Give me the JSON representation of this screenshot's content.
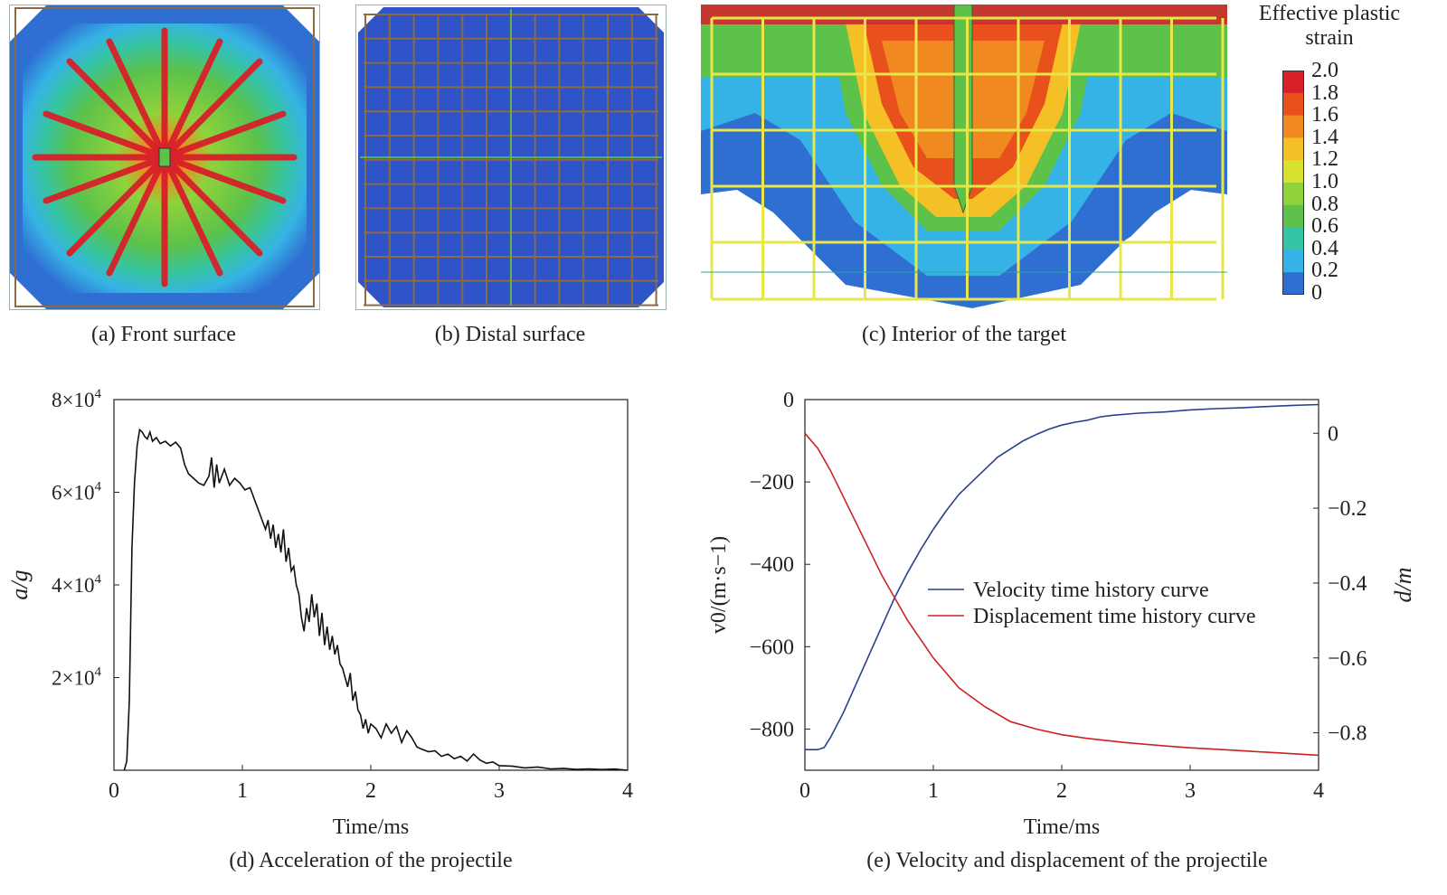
{
  "colors": {
    "scale": [
      "#2e46b8",
      "#2f6fd2",
      "#36b3e6",
      "#35c4a4",
      "#5cc24a",
      "#8fd23c",
      "#d8e030",
      "#f5c025",
      "#f08a20",
      "#e8501c",
      "#d7202a"
    ],
    "grid_brown": "#8b6a44",
    "grid_yellow": "#e8e64a",
    "velocity": "#2a3f8f",
    "displacement": "#cc2222"
  },
  "panels": {
    "a": {
      "caption": "(a) Front surface"
    },
    "b": {
      "caption": "(b) Distal surface"
    },
    "c": {
      "caption": "(c) Interior of the target"
    }
  },
  "colorbar": {
    "title_line1": "Effective plastic",
    "title_line2": "strain",
    "labels": [
      "2.0",
      "1.8",
      "1.6",
      "1.4",
      "1.2",
      "1.0",
      "0.8",
      "0.6",
      "0.4",
      "0.2",
      "0"
    ]
  },
  "chart_data": [
    {
      "type": "line",
      "caption": "(d) Acceleration of the projectile",
      "xlabel": "Time/ms",
      "ylabel": "a/g",
      "xlim": [
        0,
        4
      ],
      "ylim": [
        0,
        80000
      ],
      "xticks": [
        0,
        1,
        2,
        3,
        4
      ],
      "yticks": [
        {
          "v": 20000,
          "label": "2×10",
          "exp": "4"
        },
        {
          "v": 40000,
          "label": "4×10",
          "exp": "4"
        },
        {
          "v": 60000,
          "label": "6×10",
          "exp": "4"
        },
        {
          "v": 80000,
          "label": "8×10",
          "exp": "4"
        }
      ],
      "series": [
        {
          "x": [
            0.08,
            0.1,
            0.12,
            0.14,
            0.16,
            0.18,
            0.2,
            0.22,
            0.24,
            0.26,
            0.28,
            0.3,
            0.33,
            0.36,
            0.4,
            0.44,
            0.48,
            0.52,
            0.55,
            0.58,
            0.62,
            0.66,
            0.7,
            0.74,
            0.76,
            0.78,
            0.8,
            0.82,
            0.86,
            0.9,
            0.94,
            0.98,
            1.02,
            1.06,
            1.1,
            1.14,
            1.18,
            1.2,
            1.22,
            1.24,
            1.26,
            1.28,
            1.3,
            1.32,
            1.34,
            1.36,
            1.38,
            1.4,
            1.42,
            1.44,
            1.46,
            1.48,
            1.5,
            1.52,
            1.54,
            1.56,
            1.58,
            1.6,
            1.62,
            1.64,
            1.66,
            1.68,
            1.7,
            1.72,
            1.74,
            1.76,
            1.78,
            1.8,
            1.82,
            1.84,
            1.86,
            1.88,
            1.9,
            1.92,
            1.94,
            1.96,
            1.98,
            2.0,
            2.04,
            2.08,
            2.12,
            2.16,
            2.2,
            2.24,
            2.28,
            2.32,
            2.36,
            2.4,
            2.45,
            2.5,
            2.55,
            2.6,
            2.65,
            2.7,
            2.75,
            2.8,
            2.85,
            2.9,
            2.95,
            3.0,
            3.1,
            3.2,
            3.3,
            3.4,
            3.5,
            3.6,
            3.7,
            3.8,
            3.9,
            4.0
          ],
          "y": [
            0,
            2000,
            15000,
            48000,
            62000,
            70000,
            73500,
            73000,
            72000,
            71500,
            73000,
            71000,
            71800,
            70500,
            71000,
            70000,
            70800,
            69500,
            66000,
            64000,
            63000,
            62000,
            61500,
            63500,
            67500,
            61000,
            66000,
            62000,
            65000,
            61500,
            63000,
            62000,
            60500,
            61000,
            58000,
            55000,
            52000,
            54000,
            50000,
            53000,
            48000,
            51000,
            47000,
            52000,
            45000,
            48000,
            43000,
            44000,
            40000,
            38000,
            33000,
            30000,
            35000,
            32000,
            38000,
            33000,
            36000,
            29000,
            34000,
            27000,
            31000,
            26000,
            29000,
            25000,
            27000,
            23000,
            22000,
            20000,
            18000,
            21000,
            15000,
            17000,
            13000,
            12000,
            9000,
            11000,
            8000,
            10000,
            9000,
            7000,
            10000,
            8000,
            9500,
            6000,
            8500,
            7000,
            5000,
            4500,
            4000,
            4200,
            3000,
            3500,
            2500,
            3000,
            2000,
            3500,
            2200,
            1500,
            1800,
            1000,
            900,
            500,
            700,
            300,
            400,
            200,
            300,
            150,
            250,
            0
          ]
        }
      ]
    },
    {
      "type": "line",
      "caption": "(e) Velocity and displacement of the projectile",
      "xlabel": "Time/ms",
      "ylabel_left": "v0/(m·s−1)",
      "ylabel_right": "d/m",
      "xlim": [
        0,
        4
      ],
      "ylim_left": [
        -900,
        0
      ],
      "ylim_right": [
        -0.9,
        0.09
      ],
      "xticks": [
        0,
        1,
        2,
        3,
        4
      ],
      "yticks_left": [
        0,
        -200,
        -400,
        -600,
        -800
      ],
      "yticks_right": [
        0,
        -0.2,
        -0.4,
        -0.6,
        -0.8
      ],
      "legend_position": "center-right",
      "series": [
        {
          "name": "Velocity time history curve",
          "axis": "left",
          "x": [
            0,
            0.05,
            0.1,
            0.15,
            0.2,
            0.3,
            0.4,
            0.5,
            0.6,
            0.7,
            0.8,
            0.9,
            1.0,
            1.1,
            1.2,
            1.3,
            1.4,
            1.5,
            1.6,
            1.7,
            1.8,
            1.9,
            2.0,
            2.1,
            2.2,
            2.3,
            2.4,
            2.6,
            2.8,
            3.0,
            3.2,
            3.4,
            3.6,
            3.8,
            4.0
          ],
          "y": [
            -850,
            -850,
            -850,
            -845,
            -820,
            -760,
            -690,
            -620,
            -550,
            -480,
            -420,
            -365,
            -315,
            -270,
            -230,
            -200,
            -170,
            -140,
            -120,
            -100,
            -85,
            -72,
            -62,
            -55,
            -50,
            -42,
            -38,
            -33,
            -30,
            -25,
            -22,
            -20,
            -17,
            -14,
            -12
          ]
        },
        {
          "name": "Displacement time history curve",
          "axis": "right",
          "x": [
            0,
            0.1,
            0.2,
            0.3,
            0.4,
            0.5,
            0.6,
            0.7,
            0.8,
            0.9,
            1.0,
            1.2,
            1.4,
            1.6,
            1.8,
            2.0,
            2.2,
            2.5,
            2.8,
            3.0,
            3.3,
            3.6,
            4.0
          ],
          "y": [
            0,
            -0.04,
            -0.1,
            -0.17,
            -0.24,
            -0.31,
            -0.38,
            -0.44,
            -0.5,
            -0.55,
            -0.6,
            -0.68,
            -0.73,
            -0.77,
            -0.79,
            -0.805,
            -0.815,
            -0.826,
            -0.835,
            -0.84,
            -0.846,
            -0.852,
            -0.86
          ]
        }
      ]
    }
  ]
}
